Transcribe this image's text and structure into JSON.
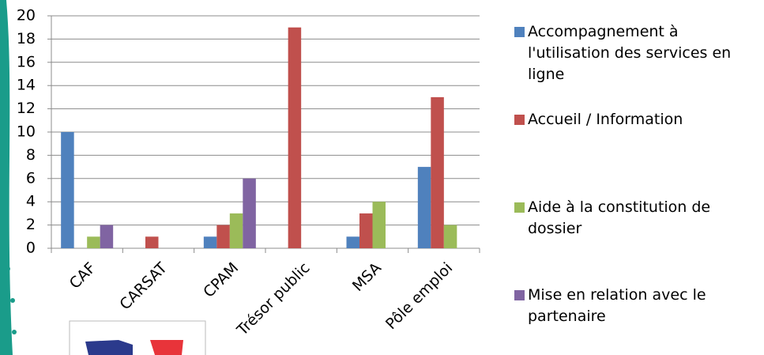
{
  "chart_data": {
    "type": "bar",
    "categories": [
      "CAF",
      "CARSAT",
      "CPAM",
      "Trésor public",
      "MSA",
      "Pôle emploi"
    ],
    "series": [
      {
        "name": "Accompagnement à l'utilisation des services en ligne",
        "color": "#4f81bd",
        "values": [
          10,
          0,
          1,
          0,
          1,
          7
        ]
      },
      {
        "name": "Accueil / Information",
        "color": "#c0504d",
        "values": [
          0,
          1,
          2,
          19,
          3,
          13
        ]
      },
      {
        "name": "Aide à la constitution de dossier",
        "color": "#9bbb59",
        "values": [
          1,
          0,
          3,
          0,
          4,
          2
        ]
      },
      {
        "name": "Mise en relation avec le partenaire",
        "color": "#8064a2",
        "values": [
          2,
          0,
          6,
          0,
          0,
          0
        ]
      }
    ],
    "ylim": [
      0,
      20
    ],
    "yticks": [
      0,
      2,
      4,
      6,
      8,
      10,
      12,
      14,
      16,
      18,
      20
    ],
    "grid": true,
    "legend": "right"
  }
}
